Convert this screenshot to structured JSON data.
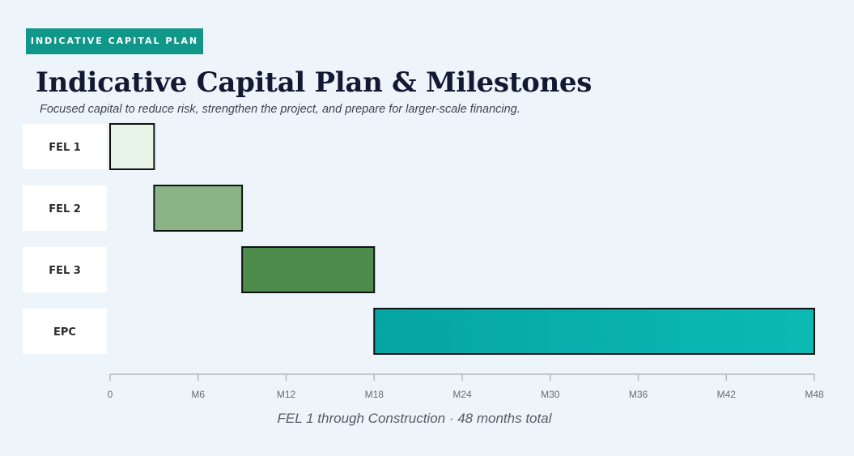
{
  "header": {
    "badge": "INDICATIVE CAPITAL PLAN",
    "title": "Indicative Capital Plan & Milestones",
    "subtitle": "Focused capital to reduce risk, strengthen the project, and prepare for larger-scale financing."
  },
  "chart_data": {
    "type": "bar",
    "orientation": "horizontal-gantt",
    "categories": [
      "FEL 1",
      "FEL 2",
      "FEL 3",
      "EPC"
    ],
    "starts": [
      0,
      3,
      9,
      18
    ],
    "ends": [
      3,
      9,
      18,
      48
    ],
    "colors": [
      "#e7f3e6",
      "#8ab486",
      "#4e8c4d",
      "#06a9a6"
    ],
    "x_ticks": [
      0,
      6,
      12,
      18,
      24,
      30,
      36,
      42,
      48
    ],
    "x_tick_labels": [
      "0",
      "M6",
      "M12",
      "M18",
      "M24",
      "M30",
      "M36",
      "M42",
      "M48"
    ],
    "xlim": [
      0,
      48
    ],
    "xlabel": "FEL 1 through Construction · 48 months total",
    "grid": false,
    "legend": "none"
  }
}
